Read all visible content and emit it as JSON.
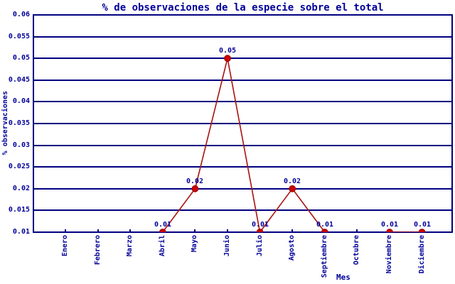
{
  "colors": {
    "background": "#ffffff",
    "axis": "#000080",
    "text": "#000099",
    "line": "#aa1111",
    "marker_fill": "#cc0000",
    "marker_edge": "#990000"
  },
  "chart_data": {
    "type": "line",
    "title": "% de observaciones de la especie sobre el total",
    "xlabel": "Mes",
    "ylabel": "% observaciones",
    "categories": [
      "Enero",
      "Febrero",
      "Marzo",
      "Abril",
      "Mayo",
      "Junio",
      "Julio",
      "Agosto",
      "Septiembre",
      "Octubre",
      "Noviembre",
      "Diciembre"
    ],
    "values": [
      null,
      null,
      null,
      0.01,
      0.02,
      0.05,
      0.01,
      0.02,
      0.01,
      null,
      0.01,
      0.01
    ],
    "point_labels": [
      "",
      "",
      "",
      "0.01",
      "0.02",
      "0.05",
      "0.01",
      "0.02",
      "0.01",
      "",
      "0.01",
      "0.01"
    ],
    "ylim": [
      0.01,
      0.06
    ],
    "yticks": [
      0.01,
      0.015,
      0.02,
      0.025,
      0.03,
      0.035,
      0.04,
      0.045,
      0.05,
      0.055,
      0.06
    ],
    "ytick_labels": [
      "0.01",
      "0.015",
      "0.02",
      "0.025",
      "0.03",
      "0.035",
      "0.04",
      "0.045",
      "0.05",
      "0.055",
      "0.06"
    ],
    "grid": true,
    "legend": null,
    "marker": "circle"
  }
}
